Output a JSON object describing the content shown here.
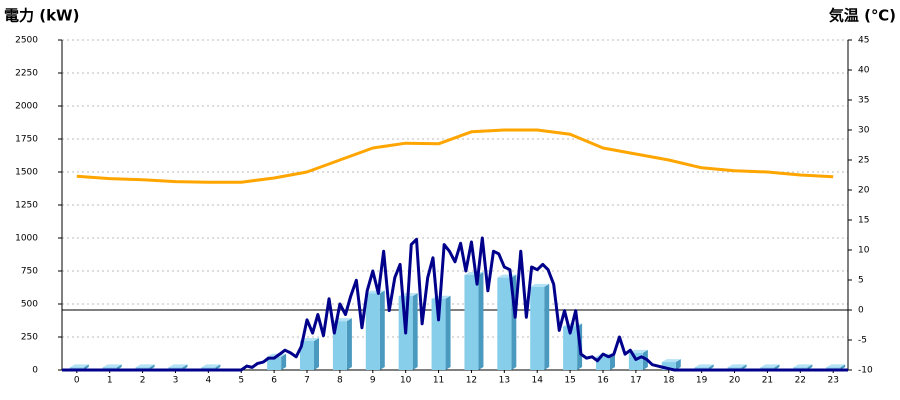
{
  "chart_data": {
    "type": "combo",
    "y_title": "電力 (kW)",
    "y2_title": "気温 (℃)",
    "y_title_color": "#1f5fa8",
    "y2_title_color": "#f07a18",
    "xlim": [
      -0.45,
      23.45
    ],
    "xticks": [
      0,
      1,
      2,
      3,
      4,
      5,
      6,
      7,
      8,
      9,
      10,
      11,
      12,
      13,
      14,
      15,
      16,
      17,
      18,
      19,
      20,
      21,
      22,
      23
    ],
    "ylim": [
      0,
      2500
    ],
    "yticks": [
      0,
      250,
      500,
      750,
      1000,
      1250,
      1500,
      1750,
      2000,
      2250,
      2500
    ],
    "y2lim": [
      -10,
      45
    ],
    "y2ticks": [
      -10,
      -5,
      0,
      5,
      10,
      15,
      20,
      25,
      30,
      35,
      40,
      45
    ],
    "y2_reference_line": 0,
    "grid": true,
    "series": [
      {
        "type": "bar",
        "color": "#87ceeb",
        "x": [
          0,
          1,
          2,
          3,
          4,
          5,
          6,
          7,
          8,
          9,
          10,
          11,
          12,
          13,
          14,
          15,
          16,
          17,
          18,
          19,
          20,
          21,
          22,
          23
        ],
        "values": [
          20,
          20,
          20,
          20,
          20,
          0,
          100,
          220,
          370,
          580,
          560,
          540,
          720,
          700,
          630,
          330,
          100,
          130,
          60,
          20,
          20,
          20,
          20,
          20
        ]
      },
      {
        "type": "line",
        "color": "#00008b",
        "x": [
          -0.45,
          5.0,
          5.17,
          5.33,
          5.5,
          5.67,
          5.83,
          6.0,
          6.17,
          6.33,
          6.5,
          6.67,
          6.83,
          7.0,
          7.17,
          7.33,
          7.5,
          7.67,
          7.83,
          8.0,
          8.17,
          8.33,
          8.5,
          8.67,
          8.83,
          9.0,
          9.17,
          9.33,
          9.5,
          9.67,
          9.83,
          10.0,
          10.17,
          10.33,
          10.5,
          10.67,
          10.83,
          11.0,
          11.17,
          11.33,
          11.5,
          11.67,
          11.83,
          12.0,
          12.17,
          12.33,
          12.5,
          12.67,
          12.83,
          13.0,
          13.17,
          13.33,
          13.5,
          13.67,
          13.83,
          14.0,
          14.17,
          14.33,
          14.5,
          14.67,
          14.83,
          15.0,
          15.17,
          15.33,
          15.5,
          15.67,
          15.83,
          16.0,
          16.17,
          16.33,
          16.5,
          16.67,
          16.83,
          17.0,
          17.17,
          17.33,
          17.5,
          17.67,
          17.83,
          18.0,
          18.17,
          23.45
        ],
        "values": [
          0,
          0,
          30,
          20,
          50,
          60,
          90,
          90,
          120,
          150,
          130,
          100,
          180,
          380,
          280,
          420,
          260,
          540,
          280,
          500,
          420,
          560,
          680,
          320,
          600,
          750,
          580,
          900,
          450,
          700,
          800,
          280,
          950,
          990,
          350,
          700,
          850,
          380,
          950,
          900,
          820,
          960,
          750,
          970,
          650,
          1000,
          600,
          900,
          880,
          780,
          760,
          400,
          900,
          400,
          780,
          760,
          800,
          760,
          650,
          300,
          450,
          280,
          450,
          120,
          90,
          100,
          70,
          120,
          100,
          120,
          250,
          120,
          150,
          80,
          100,
          80,
          40,
          30,
          20,
          10,
          0,
          0
        ]
      },
      {
        "type": "line",
        "axis": "y2",
        "color": "#ffa500",
        "x": [
          0,
          1,
          2,
          3,
          4,
          5,
          6,
          7,
          8,
          9,
          10,
          11,
          12,
          13,
          14,
          15,
          16,
          17,
          18,
          19,
          20,
          21,
          22,
          23
        ],
        "values": [
          22.3,
          21.9,
          21.7,
          21.4,
          21.3,
          21.3,
          22,
          23,
          25,
          27,
          27.8,
          27.7,
          29.7,
          30,
          30,
          29.3,
          27,
          26,
          25,
          23.7,
          23.2,
          23,
          22.5,
          22.2
        ]
      }
    ]
  }
}
